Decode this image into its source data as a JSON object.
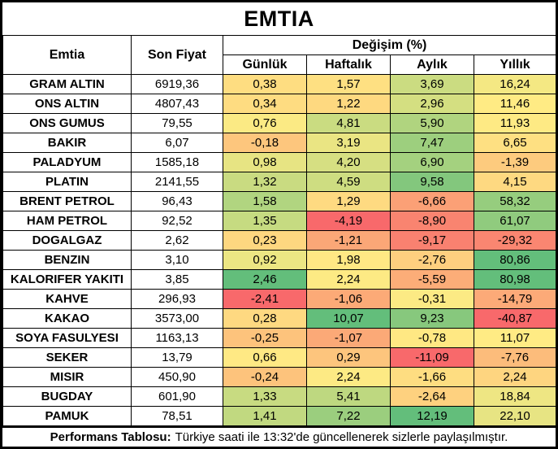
{
  "title": "EMTIA",
  "columns": {
    "emtia": "Emtia",
    "son_fiyat": "Son Fiyat",
    "degisim": "Değişim (%)",
    "sub": [
      "Günlük",
      "Haftalık",
      "Aylık",
      "Yıllık"
    ]
  },
  "colors": {
    "scale_min_red": "#F8696B",
    "scale_mid_yellow": "#FFEB84",
    "scale_max_green": "#63BE7B",
    "border": "#000000",
    "background": "#FFFFFF"
  },
  "rows": [
    {
      "name": "GRAM ALTIN",
      "price": "6919,36",
      "changes": [
        {
          "v": "0,38",
          "c": "#FEDD81"
        },
        {
          "v": "1,57",
          "c": "#FEE082"
        },
        {
          "v": "3,69",
          "c": "#CBDC81"
        },
        {
          "v": "16,24",
          "c": "#F4E883"
        }
      ]
    },
    {
      "name": "ONS ALTIN",
      "price": "4807,43",
      "changes": [
        {
          "v": "0,34",
          "c": "#FEDC81"
        },
        {
          "v": "1,22",
          "c": "#FED980"
        },
        {
          "v": "2,96",
          "c": "#D4DF81"
        },
        {
          "v": "11,46",
          "c": "#FFEB84"
        }
      ]
    },
    {
      "name": "ONS GUMUS",
      "price": "79,55",
      "changes": [
        {
          "v": "0,76",
          "c": "#FBEA84"
        },
        {
          "v": "4,81",
          "c": "#CADC81"
        },
        {
          "v": "5,90",
          "c": "#B0D47F"
        },
        {
          "v": "11,93",
          "c": "#FEEA84"
        }
      ]
    },
    {
      "name": "BAKIR",
      "price": "6,07",
      "changes": [
        {
          "v": "-0,18",
          "c": "#FDC67D"
        },
        {
          "v": "3,19",
          "c": "#EAE583"
        },
        {
          "v": "7,47",
          "c": "#9DCF7E"
        },
        {
          "v": "6,65",
          "c": "#FEE082"
        }
      ]
    },
    {
      "name": "PALADYUM",
      "price": "1585,18",
      "changes": [
        {
          "v": "0,98",
          "c": "#E7E483"
        },
        {
          "v": "4,20",
          "c": "#D6DF82"
        },
        {
          "v": "6,90",
          "c": "#A4D17F"
        },
        {
          "v": "-1,39",
          "c": "#FDCB7E"
        }
      ]
    },
    {
      "name": "PLATIN",
      "price": "2141,55",
      "changes": [
        {
          "v": "1,32",
          "c": "#C9DB81"
        },
        {
          "v": "4,59",
          "c": "#CEDD81"
        },
        {
          "v": "9,58",
          "c": "#83C77D"
        },
        {
          "v": "4,15",
          "c": "#FED981"
        }
      ]
    },
    {
      "name": "BRENT PETROL",
      "price": "96,43",
      "changes": [
        {
          "v": "1,58",
          "c": "#B1D580"
        },
        {
          "v": "1,29",
          "c": "#FEDA81"
        },
        {
          "v": "-6,66",
          "c": "#FBA076"
        },
        {
          "v": "58,32",
          "c": "#96CD7E"
        }
      ]
    },
    {
      "name": "HAM PETROL",
      "price": "92,52",
      "changes": [
        {
          "v": "1,35",
          "c": "#C6DB81"
        },
        {
          "v": "-4,19",
          "c": "#F8696B"
        },
        {
          "v": "-8,90",
          "c": "#F98470"
        },
        {
          "v": "61,07",
          "c": "#90CB7E"
        }
      ]
    },
    {
      "name": "DOGALGAZ",
      "price": "2,62",
      "changes": [
        {
          "v": "0,23",
          "c": "#FED780"
        },
        {
          "v": "-1,21",
          "c": "#FBA777"
        },
        {
          "v": "-9,17",
          "c": "#F98170"
        },
        {
          "v": "-29,32",
          "c": "#FA8671"
        }
      ]
    },
    {
      "name": "BENZIN",
      "price": "3,10",
      "changes": [
        {
          "v": "0,92",
          "c": "#ECE683"
        },
        {
          "v": "1,98",
          "c": "#FFE884"
        },
        {
          "v": "-2,76",
          "c": "#FECF7F"
        },
        {
          "v": "80,86",
          "c": "#63BE7B"
        }
      ]
    },
    {
      "name": "KALORIFER YAKITI",
      "price": "3,85",
      "changes": [
        {
          "v": "2,46",
          "c": "#63BE7B"
        },
        {
          "v": "2,24",
          "c": "#FDEA84"
        },
        {
          "v": "-5,59",
          "c": "#FCAD78"
        },
        {
          "v": "80,98",
          "c": "#63BE7B"
        }
      ]
    },
    {
      "name": "KAHVE",
      "price": "296,93",
      "changes": [
        {
          "v": "-2,41",
          "c": "#F8696B"
        },
        {
          "v": "-1,06",
          "c": "#FCAA77"
        },
        {
          "v": "-0,31",
          "c": "#FCEA84"
        },
        {
          "v": "-14,79",
          "c": "#FCAA78"
        }
      ]
    },
    {
      "name": "KAKAO",
      "price": "3573,00",
      "changes": [
        {
          "v": "0,28",
          "c": "#FED981"
        },
        {
          "v": "10,07",
          "c": "#63BE7B"
        },
        {
          "v": "9,23",
          "c": "#87C87D"
        },
        {
          "v": "-40,87",
          "c": "#F8696B"
        }
      ]
    },
    {
      "name": "SOYA FASULYESI",
      "price": "1163,13",
      "changes": [
        {
          "v": "-0,25",
          "c": "#FDC37C"
        },
        {
          "v": "-1,07",
          "c": "#FBA977"
        },
        {
          "v": "-0,78",
          "c": "#FFE883"
        },
        {
          "v": "11,07",
          "c": "#FFEB84"
        }
      ]
    },
    {
      "name": "SEKER",
      "price": "13,79",
      "changes": [
        {
          "v": "0,66",
          "c": "#FFE984"
        },
        {
          "v": "0,29",
          "c": "#FDC57D"
        },
        {
          "v": "-11,09",
          "c": "#F8696B"
        },
        {
          "v": "-7,76",
          "c": "#FCBC7B"
        }
      ]
    },
    {
      "name": "MISIR",
      "price": "450,90",
      "changes": [
        {
          "v": "-0,24",
          "c": "#FDC37C"
        },
        {
          "v": "2,24",
          "c": "#FDEA84"
        },
        {
          "v": "-1,66",
          "c": "#FEDD81"
        },
        {
          "v": "2,24",
          "c": "#FED580"
        }
      ]
    },
    {
      "name": "BUGDAY",
      "price": "601,90",
      "changes": [
        {
          "v": "1,33",
          "c": "#C8DB81"
        },
        {
          "v": "5,41",
          "c": "#BED880"
        },
        {
          "v": "-2,64",
          "c": "#FED17F"
        },
        {
          "v": "18,84",
          "c": "#EEE683"
        }
      ]
    },
    {
      "name": "PAMUK",
      "price": "78,51",
      "changes": [
        {
          "v": "1,41",
          "c": "#C1D980"
        },
        {
          "v": "7,22",
          "c": "#9BCE7E"
        },
        {
          "v": "12,19",
          "c": "#63BE7B"
        },
        {
          "v": "22,10",
          "c": "#E7E483"
        }
      ]
    }
  ],
  "footer": {
    "bold": "Performans Tablosu:",
    "text": "Türkiye saati ile 13:32'de güncellenerek sizlerle paylaşılmıştır."
  },
  "chart_data": {
    "type": "table",
    "title": "EMTIA",
    "columns": [
      "Emtia",
      "Son Fiyat",
      "Günlük",
      "Haftalık",
      "Aylık",
      "Yıllık"
    ],
    "column_group": "Değişim (%)",
    "rows": [
      [
        "GRAM ALTIN",
        6919.36,
        0.38,
        1.57,
        3.69,
        16.24
      ],
      [
        "ONS ALTIN",
        4807.43,
        0.34,
        1.22,
        2.96,
        11.46
      ],
      [
        "ONS GUMUS",
        79.55,
        0.76,
        4.81,
        5.9,
        11.93
      ],
      [
        "BAKIR",
        6.07,
        -0.18,
        3.19,
        7.47,
        6.65
      ],
      [
        "PALADYUM",
        1585.18,
        0.98,
        4.2,
        6.9,
        -1.39
      ],
      [
        "PLATIN",
        2141.55,
        1.32,
        4.59,
        9.58,
        4.15
      ],
      [
        "BRENT PETROL",
        96.43,
        1.58,
        1.29,
        -6.66,
        58.32
      ],
      [
        "HAM PETROL",
        92.52,
        1.35,
        -4.19,
        -8.9,
        61.07
      ],
      [
        "DOGALGAZ",
        2.62,
        0.23,
        -1.21,
        -9.17,
        -29.32
      ],
      [
        "BENZIN",
        3.1,
        0.92,
        1.98,
        -2.76,
        80.86
      ],
      [
        "KALORIFER YAKITI",
        3.85,
        2.46,
        2.24,
        -5.59,
        80.98
      ],
      [
        "KAHVE",
        296.93,
        -2.41,
        -1.06,
        -0.31,
        -14.79
      ],
      [
        "KAKAO",
        3573.0,
        0.28,
        10.07,
        9.23,
        -40.87
      ],
      [
        "SOYA FASULYESI",
        1163.13,
        -0.25,
        -1.07,
        -0.78,
        11.07
      ],
      [
        "SEKER",
        13.79,
        0.66,
        0.29,
        -11.09,
        -7.76
      ],
      [
        "MISIR",
        450.9,
        -0.24,
        2.24,
        -1.66,
        2.24
      ],
      [
        "BUGDAY",
        601.9,
        1.33,
        5.41,
        -2.64,
        18.84
      ],
      [
        "PAMUK",
        78.51,
        1.41,
        7.22,
        12.19,
        22.1
      ]
    ],
    "conditional_formatting": "per-column 3-color scale: min #F8696B (red), 50th percentile #FFEB84 (yellow), max #63BE7B (green)"
  }
}
